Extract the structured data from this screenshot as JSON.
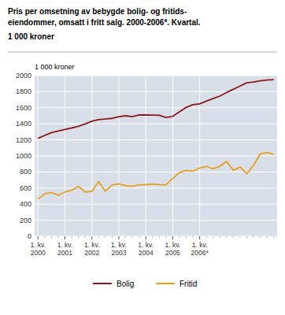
{
  "chart_data": {
    "type": "line",
    "title": "Pris per omsetning av bebygde bolig- og fritids-\neiendommer, omsatt i fritt salg. 2000-2006*. Kvartal.",
    "subtitle": "1 000 kroner",
    "y_label": "1 000 kroner",
    "categories": [
      "1. kv.\n2000",
      null,
      null,
      null,
      "1. kv.\n2001",
      null,
      null,
      null,
      "1. kv.\n2002",
      null,
      null,
      null,
      "1. kv.\n2003",
      null,
      null,
      null,
      "1. kv.\n2004",
      null,
      null,
      null,
      "1. kv.\n2005",
      null,
      null,
      null,
      "1. kv.\n2006*",
      null,
      null,
      null,
      null,
      null,
      null,
      null,
      null,
      null,
      null,
      null
    ],
    "series": [
      {
        "name": "Bolig",
        "color": "#8b1a1a",
        "values": [
          1220,
          1255,
          1290,
          1310,
          1330,
          1348,
          1368,
          1398,
          1432,
          1452,
          1460,
          1468,
          1490,
          1500,
          1490,
          1510,
          1510,
          1508,
          1507,
          1480,
          1492,
          1548,
          1605,
          1638,
          1648,
          1682,
          1715,
          1745,
          1790,
          1830,
          1870,
          1910,
          1920,
          1935,
          1945,
          1950
        ]
      },
      {
        "name": "Fritid",
        "color": "#e8a020",
        "values": [
          462,
          528,
          545,
          510,
          552,
          572,
          620,
          550,
          558,
          682,
          560,
          638,
          652,
          630,
          622,
          640,
          642,
          648,
          642,
          640,
          720,
          792,
          820,
          810,
          850,
          870,
          840,
          872,
          932,
          822,
          862,
          778,
          882,
          1025,
          1042,
          1022
        ]
      }
    ],
    "ylim": [
      0,
      2000
    ],
    "yticks": [
      0,
      200,
      400,
      600,
      800,
      1000,
      1200,
      1400,
      1600,
      1800,
      2000
    ],
    "grid": true,
    "legend": "bottom"
  }
}
